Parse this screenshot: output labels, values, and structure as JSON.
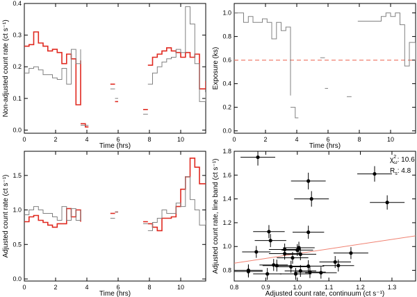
{
  "chart_data": [
    {
      "type": "line",
      "panel": "top-left",
      "xlabel": "Time (hrs)",
      "ylabel": "Non-adjusted count rate (ct s⁻¹)",
      "xlim": [
        0,
        11.6
      ],
      "ylim": [
        -0.01,
        0.4
      ],
      "xticks": [
        0,
        2,
        4,
        6,
        8,
        10
      ],
      "yticks": [
        0.0,
        0.1,
        0.2,
        0.3,
        0.4
      ],
      "ytick_labels": [
        "0.0",
        "0.1",
        "0.2",
        "0.3",
        "0.4"
      ],
      "series": [
        {
          "color": "#e0281f",
          "segments": [
            {
              "x": [
                0,
                0.3,
                0.6,
                0.9,
                1.2,
                1.5,
                1.8,
                2.1,
                2.4,
                2.7,
                3.0,
                3.3,
                3.6
              ],
              "y": [
                0.265,
                0.27,
                0.31,
                0.275,
                0.265,
                0.25,
                0.255,
                0.245,
                0.21,
                0.24,
                0.225,
                0.08,
                0.22
              ]
            },
            {
              "x": [
                3.6,
                3.9,
                4.1
              ],
              "y": [
                0.02,
                0.01,
                0.01
              ]
            },
            {
              "x": [
                5.5,
                5.8
              ],
              "y": [
                0.145,
                0.145
              ]
            },
            {
              "x": [
                5.8,
                6.0
              ],
              "y": [
                0.09,
                0.09
              ]
            },
            {
              "x": [
                7.6,
                7.9
              ],
              "y": [
                0.065,
                0.065
              ]
            },
            {
              "x": [
                7.9,
                8.2,
                8.5,
                8.8,
                9.1,
                9.4,
                9.7,
                10.0,
                10.3,
                10.6,
                10.9,
                11.2,
                11.6
              ],
              "y": [
                0.205,
                0.23,
                0.24,
                0.25,
                0.26,
                0.25,
                0.245,
                0.23,
                0.245,
                0.23,
                0.24,
                0.13,
                0.155
              ]
            }
          ]
        },
        {
          "color": "#808080",
          "segments": [
            {
              "x": [
                0,
                0.3,
                0.6,
                0.9,
                1.2,
                1.5,
                1.8,
                2.1,
                2.4,
                2.7,
                3.0,
                3.3,
                3.6
              ],
              "y": [
                0.18,
                0.195,
                0.2,
                0.19,
                0.175,
                0.175,
                0.165,
                0.16,
                0.195,
                0.145,
                0.255,
                0.21,
                0.255
              ]
            },
            {
              "x": [
                3.6,
                3.9,
                4.1
              ],
              "y": [
                0.015,
                0.015,
                0.015
              ]
            },
            {
              "x": [
                5.5,
                5.8
              ],
              "y": [
                0.13,
                0.13
              ]
            },
            {
              "x": [
                5.8,
                6.0
              ],
              "y": [
                0.1,
                0.1
              ]
            },
            {
              "x": [
                7.6,
                7.9
              ],
              "y": [
                0.05,
                0.05
              ]
            },
            {
              "x": [
                7.9,
                8.2,
                8.5,
                8.8,
                9.1,
                9.4,
                9.7,
                10.0,
                10.3,
                10.6,
                10.9,
                11.2,
                11.6
              ],
              "y": [
                0.145,
                0.18,
                0.2,
                0.215,
                0.225,
                0.23,
                0.255,
                0.245,
                0.39,
                0.335,
                0.21,
                0.09,
                0.12
              ]
            }
          ]
        }
      ]
    },
    {
      "type": "line",
      "panel": "top-right",
      "xlabel": "Time (hrs)",
      "ylabel": "Exposure (ks)",
      "xlim": [
        0,
        11.6
      ],
      "ylim": [
        -0.02,
        1.08
      ],
      "xticks": [
        0,
        2,
        4,
        6,
        8,
        10
      ],
      "yticks": [
        0.0,
        0.2,
        0.4,
        0.6,
        0.8,
        1.0
      ],
      "ytick_labels": [
        "0.0",
        "0.2",
        "0.4",
        "0.6",
        "0.8",
        "1.0"
      ],
      "reference_line": {
        "y": 0.6,
        "color": "#f08070",
        "style": "dashed"
      },
      "series": [
        {
          "color": "#808080",
          "segments": [
            {
              "x": [
                0,
                0.3,
                0.6,
                0.9,
                1.2,
                1.5,
                1.8,
                2.1,
                2.4,
                2.7,
                3.0,
                3.3,
                3.6
              ],
              "y": [
                1.0,
                1.0,
                0.92,
                0.97,
                0.92,
                0.92,
                0.95,
                0.92,
                0.78,
                0.92,
                0.85,
                0.88,
                0.3
              ]
            },
            {
              "x": [
                3.6,
                3.9,
                4.1
              ],
              "y": [
                0.2,
                0.11,
                0.11
              ]
            },
            {
              "x": [
                5.5,
                5.8
              ],
              "y": [
                0.62,
                0.62
              ]
            },
            {
              "x": [
                5.8,
                6.0
              ],
              "y": [
                0.36,
                0.36
              ]
            },
            {
              "x": [
                7.2,
                7.5
              ],
              "y": [
                0.29,
                0.29
              ]
            },
            {
              "x": [
                7.9,
                8.2,
                8.5,
                8.8,
                9.1,
                9.4,
                9.7,
                10.0,
                10.3,
                10.6,
                10.9,
                11.2,
                11.6
              ],
              "y": [
                0.93,
                0.93,
                0.93,
                0.93,
                0.93,
                0.97,
                1.0,
                0.97,
                1.0,
                0.9,
                0.55,
                0.75,
                0.6
              ]
            }
          ]
        }
      ]
    },
    {
      "type": "line",
      "panel": "bottom-left",
      "xlabel": "Time (hrs)",
      "ylabel": "Adjusted count rate (ct s⁻¹)",
      "xlim": [
        0,
        11.6
      ],
      "ylim": [
        -0.03,
        1.85
      ],
      "xticks": [
        0,
        2,
        4,
        6,
        8,
        10
      ],
      "yticks": [
        0.0,
        0.5,
        1.0,
        1.5
      ],
      "ytick_labels": [
        "0.0",
        "0.5",
        "1.0",
        "1.5"
      ],
      "series": [
        {
          "color": "#e0281f",
          "segments": [
            {
              "x": [
                0,
                0.3,
                0.6,
                0.9,
                1.2,
                1.5,
                1.8,
                2.1,
                2.4,
                2.7,
                3.0,
                3.3,
                3.6
              ],
              "y": [
                0.83,
                0.9,
                0.92,
                0.85,
                0.82,
                0.78,
                0.75,
                0.8,
                0.8,
                1.02,
                0.9,
                1.0,
                0.83
              ]
            },
            {
              "x": [
                5.5,
                5.8
              ],
              "y": [
                0.95,
                0.95
              ]
            },
            {
              "x": [
                5.8,
                6.0
              ],
              "y": [
                0.97,
                0.97
              ]
            },
            {
              "x": [
                7.6,
                7.9
              ],
              "y": [
                0.83,
                0.83
              ]
            },
            {
              "x": [
                7.9,
                8.2,
                8.5,
                8.8,
                9.1,
                9.4,
                9.7,
                10.0,
                10.3,
                10.6,
                10.9,
                11.2,
                11.6
              ],
              "y": [
                0.8,
                0.75,
                0.7,
                0.88,
                0.88,
                0.9,
                1.05,
                1.3,
                1.48,
                1.75,
                1.62,
                1.38,
                1.38
              ]
            }
          ]
        },
        {
          "color": "#808080",
          "segments": [
            {
              "x": [
                0,
                0.3,
                0.6,
                0.9,
                1.2,
                1.5,
                1.8,
                2.1,
                2.4,
                2.7,
                3.0,
                3.3,
                3.6
              ],
              "y": [
                0.93,
                1.0,
                1.05,
                1.0,
                0.95,
                0.95,
                0.9,
                0.85,
                1.05,
                0.85,
                1.02,
                0.85,
                1.0
              ]
            },
            {
              "x": [
                5.5,
                5.8
              ],
              "y": [
                0.88,
                0.88
              ]
            },
            {
              "x": [
                5.8,
                6.0
              ],
              "y": [
                0.97,
                0.97
              ]
            },
            {
              "x": [
                7.6,
                7.9
              ],
              "y": [
                0.8,
                0.8
              ]
            },
            {
              "x": [
                7.9,
                8.2,
                8.5,
                8.8,
                9.1,
                9.4,
                9.7,
                10.0,
                10.3,
                10.6,
                10.9,
                11.2,
                11.6
              ],
              "y": [
                0.7,
                0.82,
                0.88,
                1.0,
                0.95,
                0.95,
                1.1,
                1.05,
                1.48,
                1.15,
                1.0,
                0.78,
                0.85
              ]
            }
          ]
        }
      ]
    },
    {
      "type": "scatter",
      "panel": "bottom-right",
      "xlabel": "Adjusted count rate, continuum (ct s⁻¹)",
      "ylabel": "Adjusted count rate, line band (ct s⁻¹)",
      "xlim": [
        0.8,
        1.375
      ],
      "ylim": [
        0.71,
        1.8
      ],
      "xticks": [
        0.8,
        0.9,
        1.0,
        1.1,
        1.2,
        1.3
      ],
      "xtick_labels": [
        "0.8",
        "0.9",
        "1.0",
        "1.1",
        "1.2",
        "1.3"
      ],
      "yticks": [
        0.8,
        1.0,
        1.2,
        1.4,
        1.6,
        1.8
      ],
      "ytick_labels": [
        "0.8",
        "1.0",
        "1.2",
        "1.4",
        "1.6",
        "1.8"
      ],
      "annotations": [
        {
          "symbol": "χ",
          "sup": "2",
          "sub": "ω",
          "text": ": 10.6"
        },
        {
          "symbol": "R",
          "sub": "s",
          "text": ": 4.8"
        }
      ],
      "fit_line": {
        "x": [
          0.8,
          1.375
        ],
        "y": [
          0.86,
          1.09
        ],
        "color": "#f08070"
      },
      "points": [
        {
          "x": 0.875,
          "y": 1.75,
          "xerr": 0.055,
          "yerr": 0.07
        },
        {
          "x": 1.035,
          "y": 1.55,
          "xerr": 0.055,
          "yerr": 0.07
        },
        {
          "x": 1.045,
          "y": 1.4,
          "xerr": 0.055,
          "yerr": 0.065
        },
        {
          "x": 1.245,
          "y": 1.61,
          "xerr": 0.055,
          "yerr": 0.065
        },
        {
          "x": 1.285,
          "y": 1.37,
          "xerr": 0.055,
          "yerr": 0.06
        },
        {
          "x": 0.91,
          "y": 1.125,
          "xerr": 0.05,
          "yerr": 0.055
        },
        {
          "x": 0.915,
          "y": 1.05,
          "xerr": 0.05,
          "yerr": 0.055
        },
        {
          "x": 0.87,
          "y": 0.955,
          "xerr": 0.045,
          "yerr": 0.05
        },
        {
          "x": 1.035,
          "y": 1.12,
          "xerr": 0.05,
          "yerr": 0.055
        },
        {
          "x": 0.96,
          "y": 0.975,
          "xerr": 0.05,
          "yerr": 0.05
        },
        {
          "x": 0.96,
          "y": 0.94,
          "xerr": 0.05,
          "yerr": 0.05
        },
        {
          "x": 1.0,
          "y": 0.97,
          "xerr": 0.05,
          "yerr": 0.05
        },
        {
          "x": 1.005,
          "y": 0.99,
          "xerr": 0.05,
          "yerr": 0.05
        },
        {
          "x": 1.01,
          "y": 0.935,
          "xerr": 0.05,
          "yerr": 0.05
        },
        {
          "x": 0.985,
          "y": 0.905,
          "xerr": 0.05,
          "yerr": 0.05
        },
        {
          "x": 1.17,
          "y": 0.945,
          "xerr": 0.055,
          "yerr": 0.05
        },
        {
          "x": 0.925,
          "y": 0.845,
          "xerr": 0.045,
          "yerr": 0.05
        },
        {
          "x": 0.935,
          "y": 0.84,
          "xerr": 0.045,
          "yerr": 0.05
        },
        {
          "x": 0.98,
          "y": 0.83,
          "xerr": 0.05,
          "yerr": 0.05
        },
        {
          "x": 1.035,
          "y": 0.835,
          "xerr": 0.05,
          "yerr": 0.05
        },
        {
          "x": 1.12,
          "y": 0.87,
          "xerr": 0.05,
          "yerr": 0.05
        },
        {
          "x": 1.13,
          "y": 0.84,
          "xerr": 0.05,
          "yerr": 0.05
        },
        {
          "x": 0.845,
          "y": 0.8,
          "xerr": 0.045,
          "yerr": 0.05
        },
        {
          "x": 0.845,
          "y": 0.79,
          "xerr": 0.045,
          "yerr": 0.05
        },
        {
          "x": 0.905,
          "y": 0.77,
          "xerr": 0.045,
          "yerr": 0.05
        },
        {
          "x": 0.995,
          "y": 0.77,
          "xerr": 0.05,
          "yerr": 0.05
        },
        {
          "x": 1.01,
          "y": 0.795,
          "xerr": 0.05,
          "yerr": 0.05
        },
        {
          "x": 1.04,
          "y": 0.785,
          "xerr": 0.05,
          "yerr": 0.05
        },
        {
          "x": 1.075,
          "y": 0.78,
          "xerr": 0.05,
          "yerr": 0.05
        }
      ]
    }
  ]
}
